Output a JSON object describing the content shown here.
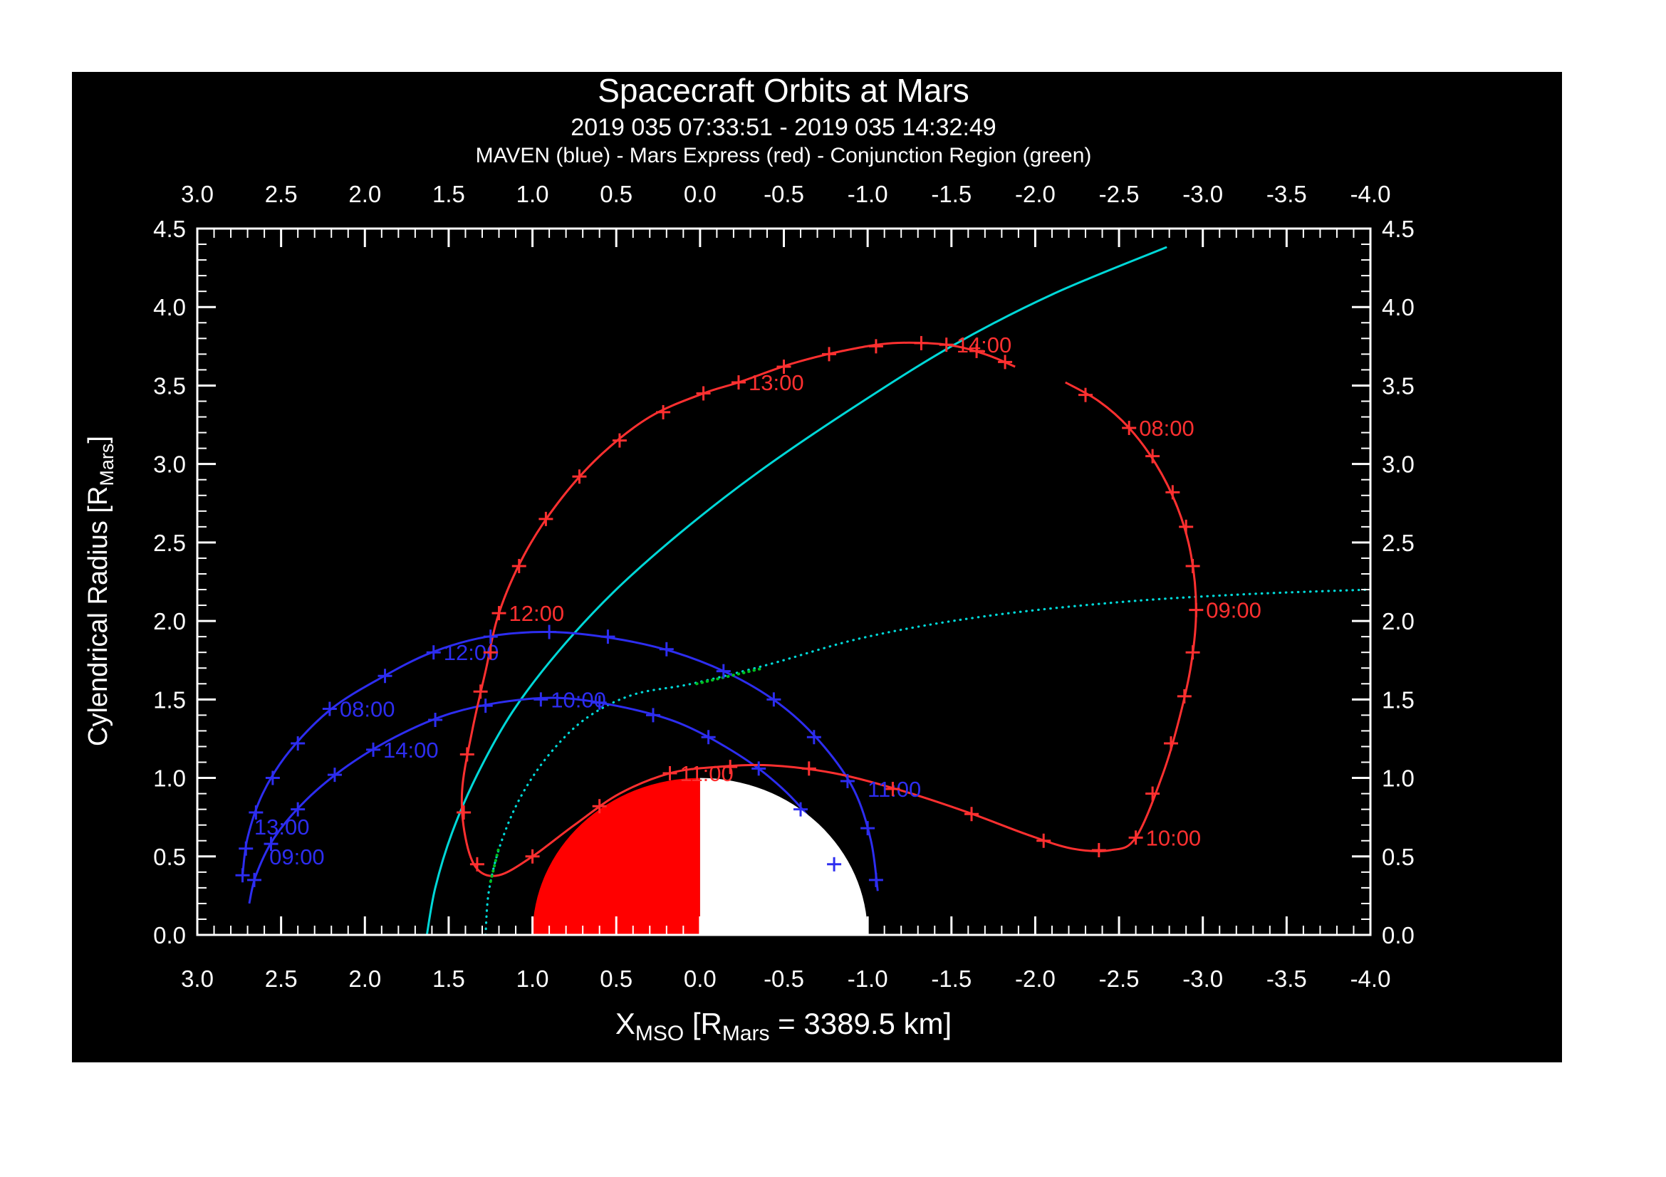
{
  "page": {
    "background": "#ffffff",
    "plot_background": "#000000"
  },
  "header": {
    "title": "Spacecraft Orbits at Mars",
    "subtitle": "2019 035 07:33:51 - 2019 035 14:32:49",
    "legend": "MAVEN (blue) - Mars Express (red) - Conjunction Region (green)"
  },
  "chart_data": {
    "type": "line",
    "title": "Spacecraft Orbits at Mars",
    "time_range": "2019 035 07:33:51 - 2019 035 14:32:49",
    "legend_line": "MAVEN (blue) - Mars Express (red) - Conjunction Region (green)",
    "xlabel": "X_MSO [R_Mars = 3389.5 km]",
    "ylabel": "Cylendrical Radius [R_Mars]",
    "xlabel_parts": [
      {
        "t": "X"
      },
      {
        "t": "MSO",
        "sub": true
      },
      {
        "t": " [R"
      },
      {
        "t": "Mars",
        "sub": true
      },
      {
        "t": " = 3389.5 km]"
      }
    ],
    "ylabel_parts": [
      {
        "t": "Cylendrical Radius [R"
      },
      {
        "t": "Mars",
        "sub": true
      },
      {
        "t": "]"
      }
    ],
    "xlim": [
      3.0,
      -4.0
    ],
    "ylim": [
      0.0,
      4.5
    ],
    "x_major_tick_step": 0.5,
    "y_major_tick_step": 0.5,
    "minor_tick_step": 0.1,
    "axis_color": "#ffffff",
    "grid": false,
    "colors": {
      "maven": "#2d2df0",
      "mars_express": "#ff3030",
      "boundary": "#00d8d8",
      "conjunction": "#00c020",
      "mars_day": "#ff0000",
      "mars_night": "#ffffff",
      "text": "#ffffff"
    },
    "mars": {
      "center_x": 0,
      "center_y": 0,
      "radius": 1,
      "day_side": "+X"
    },
    "boundaries": [
      {
        "name": "bow-shock",
        "style": "solid",
        "points": [
          [
            1.63,
            0.0
          ],
          [
            1.58,
            0.3
          ],
          [
            1.48,
            0.65
          ],
          [
            1.33,
            1.02
          ],
          [
            1.12,
            1.42
          ],
          [
            0.85,
            1.8
          ],
          [
            0.52,
            2.18
          ],
          [
            0.12,
            2.56
          ],
          [
            -0.35,
            2.95
          ],
          [
            -0.9,
            3.35
          ],
          [
            -1.5,
            3.75
          ],
          [
            -2.1,
            4.08
          ],
          [
            -2.78,
            4.38
          ]
        ]
      },
      {
        "name": "magnetic-pileup-boundary",
        "style": "dotted",
        "points": [
          [
            1.28,
            0.0
          ],
          [
            1.26,
            0.28
          ],
          [
            1.19,
            0.58
          ],
          [
            1.07,
            0.88
          ],
          [
            0.9,
            1.15
          ],
          [
            0.68,
            1.38
          ],
          [
            0.4,
            1.53
          ],
          [
            0.05,
            1.6
          ],
          [
            -0.4,
            1.72
          ],
          [
            -1.0,
            1.9
          ],
          [
            -1.7,
            2.03
          ],
          [
            -2.5,
            2.12
          ],
          [
            -3.25,
            2.17
          ],
          [
            -4.0,
            2.2
          ]
        ]
      }
    ],
    "conjunction_segments": [
      {
        "points": [
          [
            1.25,
            0.34
          ],
          [
            1.2,
            0.56
          ]
        ]
      },
      {
        "points": [
          [
            0.02,
            1.6
          ],
          [
            -0.38,
            1.7
          ]
        ]
      }
    ],
    "series": [
      {
        "name": "MAVEN",
        "color_key": "maven",
        "paths": [
          [
            [
              -1.06,
              0.28
            ],
            [
              -1.02,
              0.6
            ],
            [
              -0.92,
              0.92
            ],
            [
              -0.74,
              1.2
            ],
            [
              -0.5,
              1.45
            ],
            [
              -0.2,
              1.65
            ],
            [
              0.15,
              1.8
            ],
            [
              0.52,
              1.89
            ],
            [
              0.9,
              1.93
            ],
            [
              1.27,
              1.9
            ],
            [
              1.6,
              1.8
            ],
            [
              1.9,
              1.64
            ],
            [
              2.2,
              1.44
            ],
            [
              2.45,
              1.17
            ],
            [
              2.61,
              0.9
            ],
            [
              2.7,
              0.62
            ],
            [
              2.73,
              0.38
            ]
          ],
          [
            [
              -0.84,
              0.22
            ],
            [
              -0.78,
              0.48
            ],
            [
              -0.64,
              0.76
            ],
            [
              -0.42,
              1.0
            ],
            [
              -0.15,
              1.2
            ],
            [
              0.15,
              1.36
            ],
            [
              0.5,
              1.46
            ],
            [
              0.85,
              1.51
            ],
            [
              1.2,
              1.48
            ],
            [
              1.52,
              1.4
            ],
            [
              1.82,
              1.26
            ],
            [
              2.1,
              1.08
            ],
            [
              2.35,
              0.86
            ],
            [
              2.54,
              0.62
            ],
            [
              2.65,
              0.38
            ],
            [
              2.69,
              0.2
            ]
          ]
        ],
        "tick_marks": [
          [
            -1.05,
            0.35
          ],
          [
            -1.0,
            0.68
          ],
          [
            -0.88,
            0.98
          ],
          [
            -0.68,
            1.26
          ],
          [
            -0.44,
            1.5
          ],
          [
            -0.14,
            1.68
          ],
          [
            0.2,
            1.82
          ],
          [
            0.55,
            1.9
          ],
          [
            0.9,
            1.93
          ],
          [
            1.25,
            1.9
          ],
          [
            1.59,
            1.8
          ],
          [
            1.88,
            1.65
          ],
          [
            2.21,
            1.44
          ],
          [
            2.4,
            1.22
          ],
          [
            2.55,
            1.0
          ],
          [
            2.65,
            0.78
          ],
          [
            2.71,
            0.55
          ],
          [
            2.73,
            0.38
          ],
          [
            -0.8,
            0.45
          ],
          [
            -0.6,
            0.8
          ],
          [
            -0.35,
            1.06
          ],
          [
            -0.05,
            1.26
          ],
          [
            0.28,
            1.4
          ],
          [
            0.6,
            1.48
          ],
          [
            0.95,
            1.5
          ],
          [
            1.28,
            1.46
          ],
          [
            1.58,
            1.37
          ],
          [
            1.95,
            1.18
          ],
          [
            2.18,
            1.02
          ],
          [
            2.4,
            0.8
          ],
          [
            2.56,
            0.58
          ],
          [
            2.66,
            0.35
          ]
        ],
        "time_labels": [
          {
            "label": "08:00",
            "x": 2.21,
            "y": 1.44
          },
          {
            "label": "09:00",
            "x": 2.63,
            "y": 0.5
          },
          {
            "label": "10:00",
            "x": 0.95,
            "y": 1.5
          },
          {
            "label": "11:00",
            "x": -0.94,
            "y": 0.93
          },
          {
            "label": "12:00",
            "x": 1.59,
            "y": 1.8
          },
          {
            "label": "13:00",
            "x": 2.72,
            "y": 0.69
          },
          {
            "label": "14:00",
            "x": 1.95,
            "y": 1.18
          }
        ]
      },
      {
        "name": "Mars Express",
        "color_key": "mars_express",
        "paths": [
          [
            [
              -2.18,
              3.52
            ],
            [
              -2.38,
              3.4
            ],
            [
              -2.56,
              3.23
            ],
            [
              -2.72,
              3.0
            ],
            [
              -2.85,
              2.72
            ],
            [
              -2.93,
              2.42
            ],
            [
              -2.96,
              2.07
            ],
            [
              -2.93,
              1.72
            ],
            [
              -2.86,
              1.38
            ],
            [
              -2.76,
              1.02
            ],
            [
              -2.6,
              0.62
            ],
            [
              -2.45,
              0.54
            ],
            [
              -2.22,
              0.55
            ],
            [
              -1.95,
              0.64
            ],
            [
              -1.6,
              0.78
            ],
            [
              -1.2,
              0.92
            ],
            [
              -0.8,
              1.03
            ],
            [
              -0.42,
              1.08
            ],
            [
              -0.1,
              1.07
            ],
            [
              0.18,
              1.03
            ],
            [
              0.48,
              0.9
            ],
            [
              0.75,
              0.7
            ],
            [
              1.0,
              0.5
            ],
            [
              1.2,
              0.38
            ],
            [
              1.33,
              0.42
            ],
            [
              1.4,
              0.62
            ],
            [
              1.42,
              0.92
            ],
            [
              1.36,
              1.3
            ],
            [
              1.28,
              1.68
            ],
            [
              1.2,
              2.05
            ],
            [
              1.05,
              2.42
            ],
            [
              0.85,
              2.75
            ],
            [
              0.6,
              3.05
            ],
            [
              0.3,
              3.3
            ],
            [
              -0.02,
              3.45
            ],
            [
              -0.23,
              3.52
            ],
            [
              -0.55,
              3.64
            ],
            [
              -0.85,
              3.72
            ],
            [
              -1.15,
              3.77
            ],
            [
              -1.47,
              3.76
            ],
            [
              -1.7,
              3.7
            ],
            [
              -1.88,
              3.62
            ]
          ]
        ],
        "tick_marks": [
          [
            -2.3,
            3.44
          ],
          [
            -2.56,
            3.23
          ],
          [
            -2.7,
            3.05
          ],
          [
            -2.82,
            2.82
          ],
          [
            -2.9,
            2.6
          ],
          [
            -2.94,
            2.35
          ],
          [
            -2.96,
            2.07
          ],
          [
            -2.94,
            1.8
          ],
          [
            -2.89,
            1.52
          ],
          [
            -2.81,
            1.22
          ],
          [
            -2.7,
            0.9
          ],
          [
            -2.6,
            0.62
          ],
          [
            -2.38,
            0.54
          ],
          [
            -2.05,
            0.6
          ],
          [
            -1.62,
            0.77
          ],
          [
            -1.15,
            0.93
          ],
          [
            -0.65,
            1.06
          ],
          [
            -0.18,
            1.07
          ],
          [
            0.18,
            1.03
          ],
          [
            0.6,
            0.82
          ],
          [
            1.0,
            0.5
          ],
          [
            1.33,
            0.45
          ],
          [
            1.41,
            0.78
          ],
          [
            1.39,
            1.15
          ],
          [
            1.31,
            1.55
          ],
          [
            1.25,
            1.8
          ],
          [
            1.2,
            2.05
          ],
          [
            1.08,
            2.35
          ],
          [
            0.92,
            2.65
          ],
          [
            0.72,
            2.92
          ],
          [
            0.48,
            3.15
          ],
          [
            0.22,
            3.33
          ],
          [
            -0.02,
            3.45
          ],
          [
            -0.23,
            3.52
          ],
          [
            -0.5,
            3.62
          ],
          [
            -0.77,
            3.7
          ],
          [
            -1.05,
            3.75
          ],
          [
            -1.32,
            3.77
          ],
          [
            -1.47,
            3.76
          ],
          [
            -1.65,
            3.72
          ],
          [
            -1.82,
            3.65
          ]
        ],
        "time_labels": [
          {
            "label": "08:00",
            "x": -2.56,
            "y": 3.23
          },
          {
            "label": "09:00",
            "x": -2.96,
            "y": 2.07
          },
          {
            "label": "10:00",
            "x": -2.6,
            "y": 0.62
          },
          {
            "label": "11:00",
            "x": 0.18,
            "y": 1.03
          },
          {
            "label": "12:00",
            "x": 1.2,
            "y": 2.05
          },
          {
            "label": "13:00",
            "x": -0.23,
            "y": 3.52
          },
          {
            "label": "14:00",
            "x": -1.47,
            "y": 3.76
          }
        ]
      }
    ]
  }
}
